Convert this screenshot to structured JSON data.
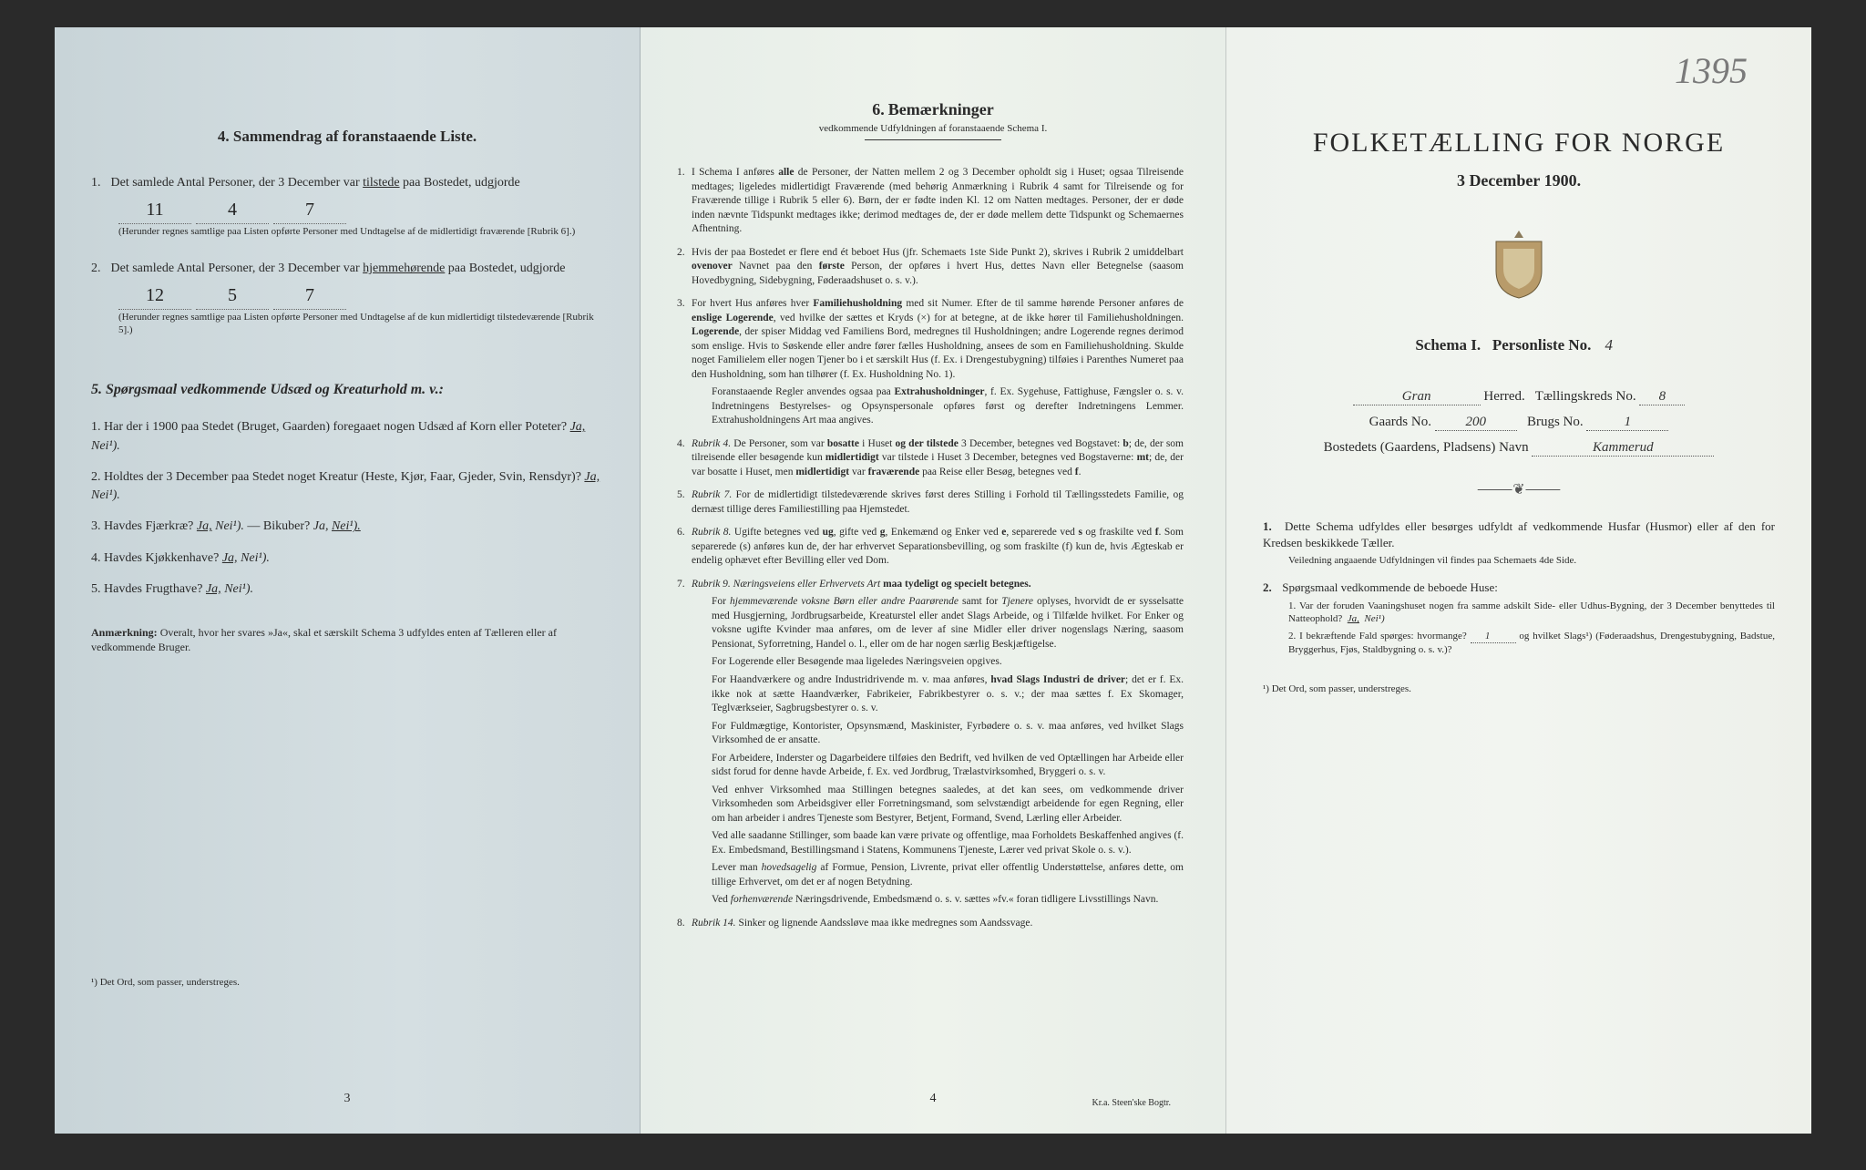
{
  "colors": {
    "page_left_bg": "#d0dadd",
    "page_middle_bg": "#eef3ec",
    "page_right_bg": "#f2f5f0",
    "text": "#2a2a2a",
    "handwriting": "#333333"
  },
  "typography": {
    "body_fontsize_pt": 11,
    "title_fontsize_pt": 24,
    "font_family": "serif"
  },
  "right_page": {
    "handwritten_number": "1395",
    "title": "FOLKETÆLLING FOR NORGE",
    "date": "3 December 1900.",
    "schema_label": "Schema I.",
    "personliste_label": "Personliste No.",
    "personliste_no": "4",
    "herred_value": "Gran",
    "herred_label": "Herred.",
    "taellingskreds_label": "Tællingskreds No.",
    "taellingskreds_no": "8",
    "gaards_label": "Gaards No.",
    "gaards_no": "200",
    "brugs_label": "Brugs No.",
    "brugs_no": "1",
    "bosted_label": "Bostedets (Gaardens, Pladsens) Navn",
    "bosted_value": "Kammerud",
    "instructions": [
      {
        "num": "1.",
        "text": "Dette Schema udfyldes eller besørges udfyldt af vedkommende Husfar (Husmor) eller af den for Kredsen beskikkede Tæller.",
        "note": "Veiledning angaaende Udfyldningen vil findes paa Schemaets 4de Side."
      },
      {
        "num": "2.",
        "text": "Spørgsmaal vedkommende de beboede Huse:",
        "subs": [
          {
            "n": "1.",
            "t": "Var der foruden Vaaningshuset nogen fra samme adskilt Side- eller Udhus-Bygning, der 3 December benyttedes til Natteophold?",
            "ja": "Ja,",
            "nei": "Nei¹)"
          },
          {
            "n": "2.",
            "t_a": "I bekræftende Fald spørges: hvormange?",
            "count": "1",
            "t_b": "og hvilket Slags¹) (Føderaadshus, Drengestubygning, Badstue, Bryggerhus, Fjøs, Staldbygning o. s. v.)?"
          }
        ]
      }
    ],
    "footnote": "¹) Det Ord, som passer, understreges."
  },
  "left_page": {
    "heading4": "4.  Sammendrag af foranstaaende Liste.",
    "item1": {
      "num": "1.",
      "text_a": "Det samlede Antal Personer, der 3 December var",
      "emph": "tilstede",
      "text_b": "paa Bostedet, udgjorde",
      "total": "11",
      "m": "4",
      "k": "7",
      "paren": "(Herunder regnes samtlige paa Listen opførte Personer med Undtagelse af de midlertidigt fraværende [Rubrik 6].)"
    },
    "item2": {
      "num": "2.",
      "text_a": "Det samlede Antal Personer, der 3 December var",
      "emph": "hjemmehørende",
      "text_b": "paa Bostedet, udgjorde",
      "total": "12",
      "m": "5",
      "k": "7",
      "paren": "(Herunder regnes samtlige paa Listen opførte Personer med Undtagelse af de kun midlertidigt tilstedeværende [Rubrik 5].)"
    },
    "heading5": "5.  Spørgsmaal vedkommende Udsæd og Kreaturhold m. v.:",
    "q": [
      {
        "n": "1.",
        "t": "Har der i 1900 paa Stedet (Bruget, Gaarden) foregaaet nogen Udsæd af Korn eller Poteter?",
        "ja": "Ja,",
        "nei": "Nei¹)."
      },
      {
        "n": "2.",
        "t": "Holdtes der 3 December paa Stedet noget Kreatur (Heste, Kjør, Faar, Gjeder, Svin, Rensdyr)?",
        "ja": "Ja,",
        "nei": "Nei¹)."
      },
      {
        "n": "3.",
        "t_a": "Havdes Fjærkræ?",
        "ja_a": "Ja,",
        "nei_a": "Nei¹).",
        "t_b": "— Bikuber?",
        "ja_b": "Ja,",
        "nei_b": "Nei¹)."
      },
      {
        "n": "4.",
        "t": "Havdes Kjøkkenhave?",
        "ja": "Ja,",
        "nei": "Nei¹)."
      },
      {
        "n": "5.",
        "t": "Havdes Frugthave?",
        "ja": "Ja,",
        "nei": "Nei¹)."
      }
    ],
    "anm_label": "Anmærkning:",
    "anm_text": "Overalt, hvor her svares »Ja«, skal et særskilt Schema 3 udfyldes enten af Tælleren eller af vedkommende Bruger.",
    "footnote": "¹) Det Ord, som passer, understreges.",
    "page_num": "3"
  },
  "middle_page": {
    "title_num": "6.",
    "title": "Bemærkninger",
    "subtitle": "vedkommende Udfyldningen af foranstaaende Schema I.",
    "page_num": "4",
    "printer": "Kr.a.  Steen'ske Bogtr.",
    "remarks": [
      {
        "n": "1.",
        "t": "I Schema I anføres <b>alle</b> de Personer, der Natten mellem 2 og 3 December opholdt sig i Huset; ogsaa Tilreisende medtages; ligeledes midlertidigt Fraværende (med behørig Anmærkning i Rubrik 4 samt for Tilreisende og for Fraværende tillige i Rubrik 5 eller 6). Børn, der er fødte inden Kl. 12 om Natten medtages. Personer, der er døde inden nævnte Tidspunkt medtages ikke; derimod medtages de, der er døde mellem dette Tidspunkt og Schemaernes Afhentning."
      },
      {
        "n": "2.",
        "t": "Hvis der paa Bostedet er flere end ét beboet Hus (jfr. Schemaets 1ste Side Punkt 2), skrives i Rubrik 2 umiddelbart <b>ovenover</b> Navnet paa den <b>første</b> Person, der opføres i hvert Hus, dettes Navn eller Betegnelse (saasom Hovedbygning, Sidebygning, Føderaadshuset o. s. v.)."
      },
      {
        "n": "3.",
        "t": "For hvert Hus anføres hver <b>Familiehusholdning</b> med sit Numer. Efter de til samme hørende Personer anføres de <b>enslige Logerende</b>, ved hvilke der sættes et Kryds (×) for at betegne, at de ikke hører til Familiehusholdningen. <b>Logerende</b>, der spiser Middag ved Familiens Bord, medregnes til Husholdningen; andre Logerende regnes derimod som enslige. Hvis to Søskende eller andre fører fælles Husholdning, ansees de som en Familiehusholdning. Skulde noget Familielem eller nogen Tjener bo i et særskilt Hus (f. Ex. i Drengestubygning) tilføies i Parenthes Numeret paa den Husholdning, som han tilhører (f. Ex. Husholdning No. 1).",
        "p2": "Foranstaaende Regler anvendes ogsaa paa <b>Extrahusholdninger</b>, f. Ex. Sygehuse, Fattighuse, Fængsler o. s. v. Indretningens Bestyrelses- og Opsynspersonale opføres først og derefter Indretningens Lemmer. Extrahusholdningens Art maa angives."
      },
      {
        "n": "4.",
        "t": "<i>Rubrik 4.</i> De Personer, som var <b>bosatte</b> i Huset <b>og der tilstede</b> 3 December, betegnes ved Bogstavet: <b>b</b>; de, der som tilreisende eller besøgende kun <b>midlertidigt</b> var tilstede i Huset 3 December, betegnes ved Bogstaverne: <b>mt</b>; de, der var bosatte i Huset, men <b>midlertidigt</b> var <b>fraværende</b> paa Reise eller Besøg, betegnes ved <b>f</b>."
      },
      {
        "n": "5.",
        "t": "<i>Rubrik 7.</i> For de midlertidigt tilstedeværende skrives først deres Stilling i Forhold til Tællingsstedets Familie, og dernæst tillige deres Familiestilling paa Hjemstedet."
      },
      {
        "n": "6.",
        "t": "<i>Rubrik 8.</i> Ugifte betegnes ved <b>ug</b>, gifte ved <b>g</b>, Enkemænd og Enker ved <b>e</b>, separerede ved <b>s</b> og fraskilte ved <b>f</b>. Som separerede (s) anføres kun de, der har erhvervet Separationsbevilling, og som fraskilte (f) kun de, hvis Ægteskab er endelig ophævet efter Bevilling eller ved Dom."
      },
      {
        "n": "7.",
        "t": "<i>Rubrik 9. Næringsveiens eller Erhvervets Art</i> <b>maa tydeligt og specielt betegnes.</b>",
        "p2": "For <i>hjemmeværende voksne Børn eller andre Paarørende</i> samt for <i>Tjenere</i> oplyses, hvorvidt de er sysselsatte med Husgjerning, Jordbrugsarbeide, Kreaturstel eller andet Slags Arbeide, og i Tilfælde hvilket. For Enker og voksne ugifte Kvinder maa anføres, om de lever af sine Midler eller driver nogenslags Næring, saasom Pensionat, Syforretning, Handel o. l., eller om de har nogen særlig Beskjæftigelse.",
        "p3": "For Logerende eller Besøgende maa ligeledes Næringsveien opgives.",
        "p4": "For Haandværkere og andre Industridrivende m. v. maa anføres, <b>hvad Slags Industri de driver</b>; det er f. Ex. ikke nok at sætte Haandværker, Fabrikeier, Fabrikbestyrer o. s. v.; der maa sættes f. Ex Skomager, Teglværkseier, Sagbrugsbestyrer o. s. v.",
        "p5": "For Fuldmægtige, Kontorister, Opsynsmænd, Maskinister, Fyrbødere o. s. v. maa anføres, ved hvilket Slags Virksomhed de er ansatte.",
        "p6": "For Arbeidere, Inderster og Dagarbeidere tilføies den Bedrift, ved hvilken de ved Optællingen har Arbeide eller sidst forud for denne havde Arbeide, f. Ex. ved Jordbrug, Trælastvirksomhed, Bryggeri o. s. v.",
        "p7": "Ved enhver Virksomhed maa Stillingen betegnes saaledes, at det kan sees, om vedkommende driver Virksomheden som Arbeidsgiver eller Forretningsmand, som selvstændigt arbeidende for egen Regning, eller om han arbeider i andres Tjeneste som Bestyrer, Betjent, Formand, Svend, Lærling eller Arbeider.",
        "p8": "Ved alle saadanne Stillinger, som baade kan være private og offentlige, maa Forholdets Beskaffenhed angives (f. Ex. Embedsmand, Bestillingsmand i Statens, Kommunens Tjeneste, Lærer ved privat Skole o. s. v.).",
        "p9": "Lever man <i>hovedsagelig</i> af Formue, Pension, Livrente, privat eller offentlig Understøttelse, anføres dette, om tillige Erhvervet, om det er af nogen Betydning.",
        "p10": "Ved <i>forhenværende</i> Næringsdrivende, Embedsmænd o. s. v. sættes »fv.« foran tidligere Livsstillings Navn."
      },
      {
        "n": "8.",
        "t": "<i>Rubrik 14.</i> Sinker og lignende Aandssløve maa ikke medregnes som Aandssvage."
      }
    ]
  }
}
